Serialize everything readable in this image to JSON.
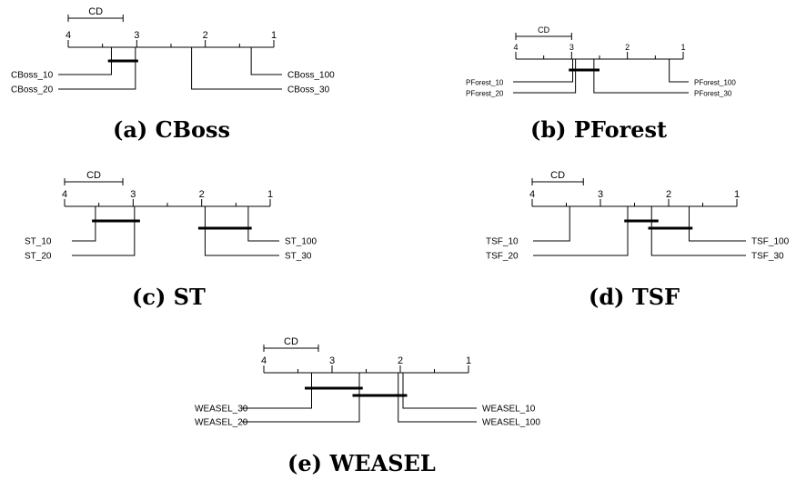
{
  "figure": {
    "axis_max": 4,
    "axis_min": 1,
    "cd_label": "CD"
  },
  "chart_data": [
    {
      "type": "cd-diagram",
      "caption": "(a) CBoss",
      "ticks": [
        4,
        3,
        2,
        1
      ],
      "cd": 0.8,
      "left": [
        {
          "name": "CBoss_10",
          "rank": 3.37
        },
        {
          "name": "CBoss_20",
          "rank": 3.02
        }
      ],
      "right": [
        {
          "name": "CBoss_100",
          "rank": 1.33
        },
        {
          "name": "CBoss_30",
          "rank": 2.2
        }
      ],
      "cliques": [
        [
          3.42,
          2.98
        ]
      ]
    },
    {
      "type": "cd-diagram",
      "caption": "(b) PForest",
      "ticks": [
        4,
        3,
        2,
        1
      ],
      "cd": 1.0,
      "left": [
        {
          "name": "PForest_10",
          "rank": 2.98
        },
        {
          "name": "PForest_20",
          "rank": 2.93
        }
      ],
      "right": [
        {
          "name": "PForest_100",
          "rank": 1.25
        },
        {
          "name": "PForest_30",
          "rank": 2.6
        }
      ],
      "cliques": [
        [
          3.05,
          2.5
        ]
      ]
    },
    {
      "type": "cd-diagram",
      "caption": "(c) ST",
      "ticks": [
        4,
        3,
        2,
        1
      ],
      "cd": 0.85,
      "left": [
        {
          "name": "ST_10",
          "rank": 3.55
        },
        {
          "name": "ST_20",
          "rank": 2.98
        }
      ],
      "right": [
        {
          "name": "ST_100",
          "rank": 1.32
        },
        {
          "name": "ST_30",
          "rank": 1.95
        }
      ],
      "cliques": [
        [
          3.6,
          2.9
        ],
        [
          2.05,
          1.27
        ]
      ]
    },
    {
      "type": "cd-diagram",
      "caption": "(d) TSF",
      "ticks": [
        4,
        3,
        2,
        1
      ],
      "cd": 0.75,
      "left": [
        {
          "name": "TSF_10",
          "rank": 3.45
        },
        {
          "name": "TSF_20",
          "rank": 2.6
        }
      ],
      "right": [
        {
          "name": "TSF_100",
          "rank": 1.7
        },
        {
          "name": "TSF_30",
          "rank": 2.25
        }
      ],
      "cliques": [
        [
          2.65,
          2.15
        ],
        [
          2.3,
          1.65
        ]
      ]
    },
    {
      "type": "cd-diagram",
      "caption": "(e) WEASEL",
      "ticks": [
        4,
        3,
        2,
        1
      ],
      "cd": 0.8,
      "left": [
        {
          "name": "WEASEL_30",
          "rank": 3.3
        },
        {
          "name": "WEASEL_20",
          "rank": 2.6
        }
      ],
      "right": [
        {
          "name": "WEASEL_10",
          "rank": 1.96
        },
        {
          "name": "WEASEL_100",
          "rank": 2.03
        }
      ],
      "cliques": [
        [
          3.4,
          2.55
        ],
        [
          2.7,
          1.9
        ]
      ]
    }
  ]
}
